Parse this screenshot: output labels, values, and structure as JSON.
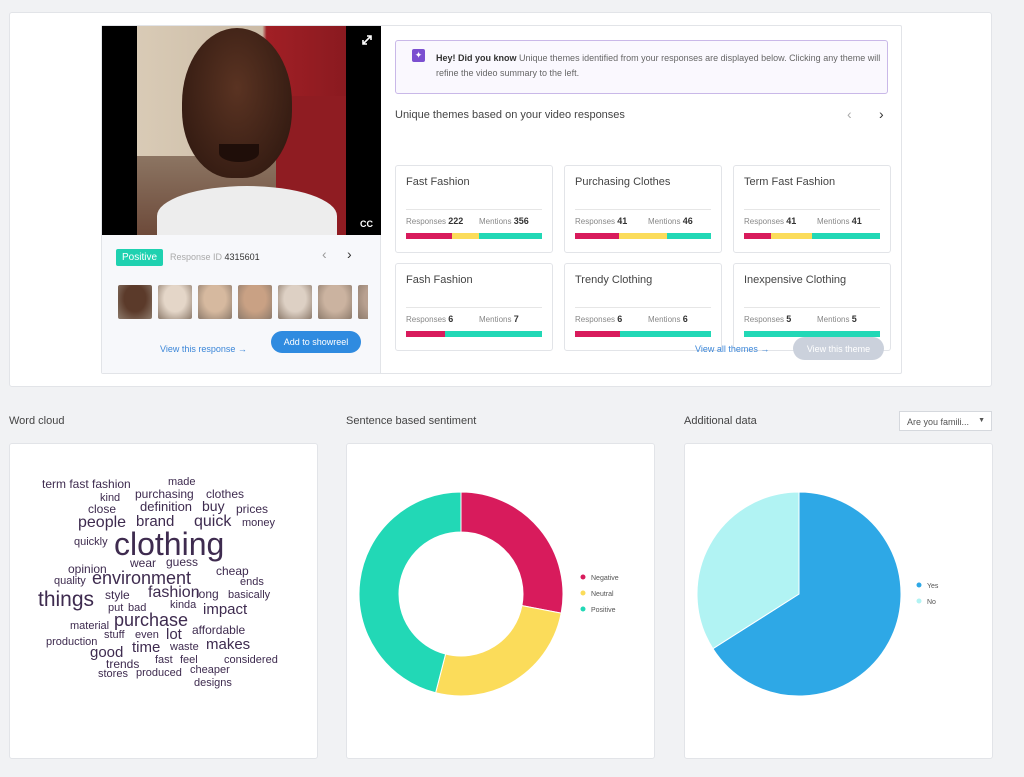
{
  "video": {
    "cc_label": "CC"
  },
  "response": {
    "sentiment": "Positive",
    "id_label": "Response ID",
    "id_value": "4315601"
  },
  "thumbnails": [
    "#5b3a2a",
    "#e4d6c8",
    "#d6b99f",
    "#c9a184",
    "#ddd0c4",
    "#cbb3a0",
    "#b8a090"
  ],
  "actions": {
    "view_response": "View this response",
    "add_showreel": "Add to showreel"
  },
  "tip": {
    "lead": "Hey! Did you know",
    "text": "Unique themes identified from your responses are displayed below. Clicking any theme will refine the video summary to the left."
  },
  "themes_title": "Unique themes based on your video responses",
  "themes": [
    {
      "name": "Fast Fashion",
      "responses": "222",
      "mentions": "356",
      "bar": [
        0.34,
        0.2,
        0.46
      ]
    },
    {
      "name": "Purchasing Clothes",
      "responses": "41",
      "mentions": "46",
      "bar": [
        0.32,
        0.36,
        0.32
      ]
    },
    {
      "name": "Term Fast Fashion",
      "responses": "41",
      "mentions": "41",
      "bar": [
        0.2,
        0.3,
        0.5
      ]
    },
    {
      "name": "Fash Fashion",
      "responses": "6",
      "mentions": "7",
      "bar": [
        0.29,
        0,
        0.71
      ]
    },
    {
      "name": "Trendy Clothing",
      "responses": "6",
      "mentions": "6",
      "bar": [
        0.33,
        0,
        0.67
      ]
    },
    {
      "name": "Inexpensive Clothing",
      "responses": "5",
      "mentions": "5",
      "bar": [
        0,
        0,
        1
      ]
    }
  ],
  "theme_labels": {
    "responses": "Responses",
    "mentions": "Mentions"
  },
  "theme_actions": {
    "view_all": "View all themes",
    "view_theme": "View this theme"
  },
  "sections": {
    "word_cloud": "Word cloud",
    "sentiment": "Sentence based sentiment",
    "additional": "Additional data"
  },
  "dropdown": {
    "value": "Are you famili..."
  },
  "word_cloud": [
    {
      "w": "term fast fashion",
      "s": 12
    },
    {
      "w": "made",
      "s": 11
    },
    {
      "w": "kind",
      "s": 11
    },
    {
      "w": "purchasing",
      "s": 12
    },
    {
      "w": "clothes",
      "s": 12
    },
    {
      "w": "close",
      "s": 12
    },
    {
      "w": "definition",
      "s": 13
    },
    {
      "w": "buy",
      "s": 14
    },
    {
      "w": "prices",
      "s": 12
    },
    {
      "w": "people",
      "s": 16
    },
    {
      "w": "brand",
      "s": 15
    },
    {
      "w": "quick",
      "s": 16
    },
    {
      "w": "money",
      "s": 11
    },
    {
      "w": "quickly",
      "s": 11
    },
    {
      "w": "clothing",
      "s": 32
    },
    {
      "w": "opinion",
      "s": 12
    },
    {
      "w": "wear",
      "s": 12
    },
    {
      "w": "guess",
      "s": 12
    },
    {
      "w": "cheap",
      "s": 12
    },
    {
      "w": "quality",
      "s": 11
    },
    {
      "w": "environment",
      "s": 18
    },
    {
      "w": "ends",
      "s": 11
    },
    {
      "w": "things",
      "s": 21
    },
    {
      "w": "style",
      "s": 12
    },
    {
      "w": "fashion",
      "s": 16
    },
    {
      "w": "long",
      "s": 12
    },
    {
      "w": "basically",
      "s": 11
    },
    {
      "w": "put",
      "s": 11
    },
    {
      "w": "bad",
      "s": 11
    },
    {
      "w": "kinda",
      "s": 11
    },
    {
      "w": "impact",
      "s": 15
    },
    {
      "w": "purchase",
      "s": 18
    },
    {
      "w": "material",
      "s": 11
    },
    {
      "w": "stuff",
      "s": 11
    },
    {
      "w": "even",
      "s": 11
    },
    {
      "w": "lot",
      "s": 15
    },
    {
      "w": "affordable",
      "s": 12
    },
    {
      "w": "production",
      "s": 11
    },
    {
      "w": "time",
      "s": 15
    },
    {
      "w": "waste",
      "s": 11
    },
    {
      "w": "makes",
      "s": 15
    },
    {
      "w": "good",
      "s": 15
    },
    {
      "w": "fast",
      "s": 11
    },
    {
      "w": "feel",
      "s": 11
    },
    {
      "w": "considered",
      "s": 11
    },
    {
      "w": "trends",
      "s": 12
    },
    {
      "w": "cheaper",
      "s": 11
    },
    {
      "w": "stores",
      "s": 11
    },
    {
      "w": "produced",
      "s": 11
    },
    {
      "w": "designs",
      "s": 11
    }
  ],
  "sentiment_chart": {
    "type": "pie",
    "slices": [
      {
        "name": "Negative",
        "value": 0.28,
        "color": "#d81b5c"
      },
      {
        "name": "Neutral",
        "value": 0.26,
        "color": "#fbdc5a"
      },
      {
        "name": "Positive",
        "value": 0.46,
        "color": "#22d8b6"
      }
    ]
  },
  "additional_chart": {
    "type": "pie",
    "slices": [
      {
        "name": "Yes",
        "value": 0.66,
        "color": "#2ea8e6"
      },
      {
        "name": "No",
        "value": 0.34,
        "color": "#b1f3f3"
      }
    ]
  }
}
